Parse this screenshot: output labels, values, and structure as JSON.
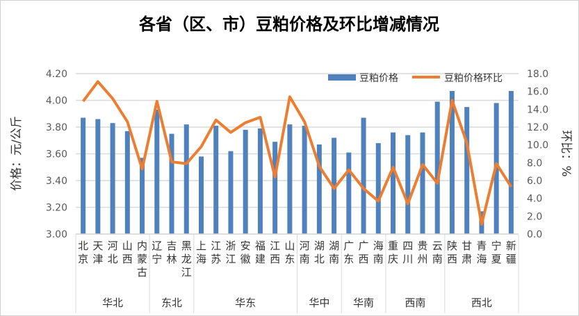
{
  "chart_data": {
    "type": "bar",
    "title": "各省（区、市）豆粕价格及环比增减情况",
    "ylabel": "价格：元/公斤",
    "y2label": "环比：%",
    "ylim": [
      3.0,
      4.2
    ],
    "y2lim": [
      0,
      18
    ],
    "yticks": [
      "3.00",
      "3.20",
      "3.40",
      "3.60",
      "3.80",
      "4.00",
      "4.20"
    ],
    "y2ticks": [
      "0.0",
      "2.0",
      "4.0",
      "6.0",
      "8.0",
      "10.0",
      "12.0",
      "14.0",
      "16.0",
      "18.0"
    ],
    "legend_position": "top-right",
    "grid": true,
    "categories": [
      "北京",
      "天津",
      "河北",
      "山西",
      "内蒙古",
      "辽宁",
      "吉林",
      "黑龙江",
      "上海",
      "江苏",
      "浙江",
      "安徽",
      "福建",
      "江西",
      "山东",
      "河南",
      "湖北",
      "湖南",
      "广东",
      "广西",
      "海南",
      "重庆",
      "四川",
      "贵州",
      "云南",
      "陕西",
      "甘肃",
      "青海",
      "宁夏",
      "新疆"
    ],
    "groups": [
      {
        "name": "华北",
        "count": 5
      },
      {
        "name": "东北",
        "count": 3
      },
      {
        "name": "华东",
        "count": 7
      },
      {
        "name": "华中",
        "count": 3
      },
      {
        "name": "华南",
        "count": 3
      },
      {
        "name": "西南",
        "count": 4
      },
      {
        "name": "西北",
        "count": 5
      }
    ],
    "series": [
      {
        "name": "豆粕价格",
        "type": "bar",
        "axis": "left",
        "color": "#4f81bd",
        "values": [
          3.87,
          3.86,
          3.83,
          3.77,
          3.57,
          3.93,
          3.75,
          3.82,
          3.58,
          3.81,
          3.62,
          3.78,
          3.79,
          3.69,
          3.82,
          3.81,
          3.67,
          3.72,
          3.61,
          3.87,
          3.68,
          3.76,
          3.74,
          3.76,
          3.99,
          4.07,
          3.95,
          3.17,
          3.98,
          4.07
        ]
      },
      {
        "name": "豆粕价格环比",
        "type": "line",
        "axis": "right",
        "color": "#ed7d31",
        "values": [
          14.9,
          17.1,
          15.2,
          12.6,
          7.3,
          14.9,
          8.1,
          7.9,
          9.8,
          12.8,
          11.4,
          12.5,
          13.1,
          6.4,
          15.4,
          12.6,
          7.6,
          5.1,
          7.2,
          5.1,
          3.7,
          7.5,
          3.4,
          7.8,
          5.7,
          15.0,
          10.2,
          1.1,
          7.9,
          5.3
        ]
      }
    ]
  }
}
